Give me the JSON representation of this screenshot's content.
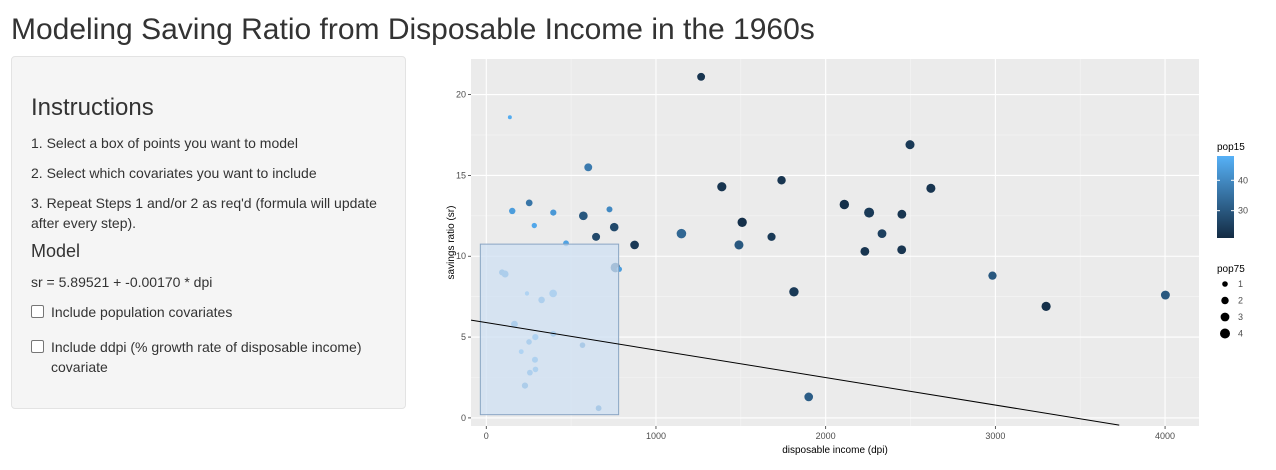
{
  "page": {
    "title": "Modeling Saving Ratio from Disposable Income in the 1960s"
  },
  "sidebar": {
    "instructions_heading": "Instructions",
    "steps": [
      "1. Select a box of points you want to model",
      "2. Select which covariates you want to include",
      "3. Repeat Steps 1 and/or 2 as req'd (formula will update after every step)."
    ],
    "model_heading": "Model",
    "formula": "sr = 5.89521 + -0.00170 * dpi",
    "checkbox_population": {
      "label": "Include population covariates",
      "checked": false
    },
    "checkbox_ddpi": {
      "label": "Include ddpi (% growth rate of disposable income) covariate",
      "checked": false
    }
  },
  "chart_data": {
    "type": "scatter",
    "xlabel": "disposable income (dpi)",
    "ylabel": "savings ratio (sr)",
    "xlim": [
      -90,
      4200
    ],
    "ylim": [
      -0.5,
      22.2
    ],
    "x_ticks": [
      0,
      1000,
      2000,
      3000,
      4000
    ],
    "y_ticks": [
      0,
      5,
      10,
      15,
      20
    ],
    "background": "#ebebeb",
    "grid": true,
    "legend_position": "right",
    "legend_color": {
      "title": "pop15",
      "ticks": [
        30,
        40
      ],
      "range": [
        21,
        48
      ],
      "low_color": "#132B43",
      "high_color": "#56B1F7"
    },
    "legend_size": {
      "title": "pop75",
      "values": [
        1,
        2,
        3,
        4
      ]
    },
    "selection_box": {
      "x_range": [
        -35,
        780
      ],
      "y_range": [
        0.2,
        10.75
      ],
      "fill": "#cfe0f3"
    },
    "fit_line": {
      "intercept": 5.89521,
      "slope": -0.0017,
      "x_range": [
        -90,
        3730
      ],
      "color": "#000000"
    },
    "points": [
      {
        "x": 1266,
        "y": 21.1,
        "pop15": 23,
        "pop75": 2.3
      },
      {
        "x": 139,
        "y": 18.6,
        "pop15": 47,
        "pop75": 0.4
      },
      {
        "x": 2497,
        "y": 16.9,
        "pop15": 24,
        "pop75": 3.2
      },
      {
        "x": 601,
        "y": 15.5,
        "pop15": 37,
        "pop75": 2.3
      },
      {
        "x": 1740,
        "y": 14.7,
        "pop15": 23,
        "pop75": 2.7
      },
      {
        "x": 1388,
        "y": 14.3,
        "pop15": 23,
        "pop75": 3.3
      },
      {
        "x": 2620,
        "y": 14.2,
        "pop15": 23,
        "pop75": 3.2
      },
      {
        "x": 253,
        "y": 13.3,
        "pop15": 36,
        "pop75": 1.6
      },
      {
        "x": 2110,
        "y": 13.2,
        "pop15": 22,
        "pop75": 3.5
      },
      {
        "x": 2256,
        "y": 12.7,
        "pop15": 24,
        "pop75": 4.0
      },
      {
        "x": 726,
        "y": 12.9,
        "pop15": 40,
        "pop75": 1.2
      },
      {
        "x": 153,
        "y": 12.8,
        "pop15": 44,
        "pop75": 1.4
      },
      {
        "x": 395,
        "y": 12.7,
        "pop15": 43,
        "pop75": 1.3
      },
      {
        "x": 2449,
        "y": 12.6,
        "pop15": 23,
        "pop75": 3.0
      },
      {
        "x": 572,
        "y": 12.5,
        "pop15": 30,
        "pop75": 2.9
      },
      {
        "x": 1508,
        "y": 12.1,
        "pop15": 22,
        "pop75": 3.4
      },
      {
        "x": 283,
        "y": 11.9,
        "pop15": 46,
        "pop75": 0.9
      },
      {
        "x": 754,
        "y": 11.8,
        "pop15": 27,
        "pop75": 2.8
      },
      {
        "x": 2332,
        "y": 11.4,
        "pop15": 25,
        "pop75": 3.0
      },
      {
        "x": 1150,
        "y": 11.4,
        "pop15": 33,
        "pop75": 3.6
      },
      {
        "x": 647,
        "y": 11.2,
        "pop15": 27,
        "pop75": 2.4
      },
      {
        "x": 1681,
        "y": 11.2,
        "pop15": 24,
        "pop75": 2.5
      },
      {
        "x": 470,
        "y": 10.8,
        "pop15": 45,
        "pop75": 1.1
      },
      {
        "x": 874,
        "y": 10.7,
        "pop15": 24,
        "pop75": 2.9
      },
      {
        "x": 1489,
        "y": 10.7,
        "pop15": 30,
        "pop75": 3.2
      },
      {
        "x": 2231,
        "y": 10.3,
        "pop15": 23,
        "pop75": 3.0
      },
      {
        "x": 2448,
        "y": 10.4,
        "pop15": 23,
        "pop75": 3.0
      },
      {
        "x": 761,
        "y": 9.3,
        "pop15": 32,
        "pop75": 3.6
      },
      {
        "x": 784,
        "y": 9.2,
        "pop15": 44,
        "pop75": 0.9
      },
      {
        "x": 93,
        "y": 9.0,
        "pop15": 42,
        "pop75": 1.2
      },
      {
        "x": 111,
        "y": 8.9,
        "pop15": 43,
        "pop75": 1.7
      },
      {
        "x": 2983,
        "y": 8.8,
        "pop15": 30,
        "pop75": 2.6
      },
      {
        "x": 4002,
        "y": 7.6,
        "pop15": 30,
        "pop75": 3.1
      },
      {
        "x": 1813,
        "y": 7.8,
        "pop15": 24,
        "pop75": 3.5
      },
      {
        "x": 394,
        "y": 7.7,
        "pop15": 45,
        "pop75": 2.2
      },
      {
        "x": 240,
        "y": 7.7,
        "pop15": 47,
        "pop75": 0.5
      },
      {
        "x": 326,
        "y": 7.3,
        "pop15": 44,
        "pop75": 1.5
      },
      {
        "x": 3299,
        "y": 6.9,
        "pop15": 22,
        "pop75": 3.3
      },
      {
        "x": 166,
        "y": 5.8,
        "pop15": 43,
        "pop75": 1.6
      },
      {
        "x": 395,
        "y": 5.2,
        "pop15": 45,
        "pop75": 1.1
      },
      {
        "x": 289,
        "y": 5.0,
        "pop15": 46,
        "pop75": 1.3
      },
      {
        "x": 252,
        "y": 4.7,
        "pop15": 44,
        "pop75": 1.0
      },
      {
        "x": 567,
        "y": 4.5,
        "pop15": 40,
        "pop75": 1.0
      },
      {
        "x": 206,
        "y": 4.1,
        "pop15": 47,
        "pop75": 0.7
      },
      {
        "x": 287,
        "y": 3.6,
        "pop15": 45,
        "pop75": 1.2
      },
      {
        "x": 290,
        "y": 3.0,
        "pop15": 45,
        "pop75": 1.0
      },
      {
        "x": 257,
        "y": 2.8,
        "pop15": 44,
        "pop75": 1.1
      },
      {
        "x": 228,
        "y": 2.0,
        "pop15": 42,
        "pop75": 1.3
      },
      {
        "x": 1900,
        "y": 1.3,
        "pop15": 31,
        "pop75": 2.9
      },
      {
        "x": 662,
        "y": 0.6,
        "pop15": 40,
        "pop75": 1.1
      }
    ]
  }
}
